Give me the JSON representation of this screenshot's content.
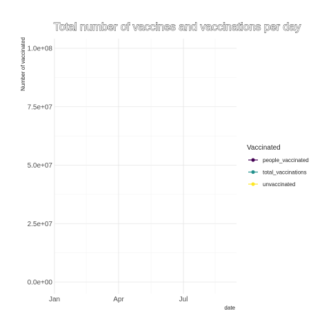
{
  "chart_data": {
    "type": "line",
    "title": "Total number of vaccines and vaccinations per day",
    "xlabel": "date",
    "ylabel": "Number of vaccinated",
    "x_ticks": [
      "Jan",
      "Apr",
      "Jul"
    ],
    "y_ticks": [
      "0.0e+00",
      "2.5e+07",
      "5.0e+07",
      "7.5e+07",
      "1.0e+08"
    ],
    "y_tick_values": [
      0,
      25000000,
      50000000,
      75000000,
      100000000
    ],
    "ylim": [
      0,
      100000000
    ],
    "grid": true,
    "legend": {
      "title": "Vaccinated",
      "position": "right",
      "entries": [
        {
          "label": "people_vaccinated",
          "color": "#440154"
        },
        {
          "label": "total_vaccinations",
          "color": "#21908C"
        },
        {
          "label": "unvaccinated",
          "color": "#FDE725"
        }
      ]
    },
    "series": []
  }
}
